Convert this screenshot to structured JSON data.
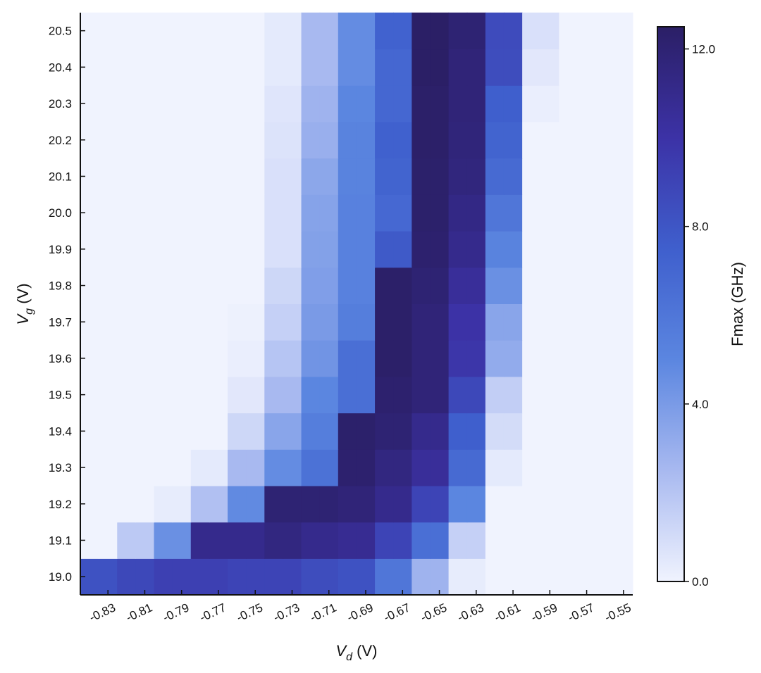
{
  "chart_data": {
    "type": "heatmap",
    "xlabel": {
      "main": "V",
      "sub": "d",
      "unit": " (V)"
    },
    "ylabel": {
      "main": "V",
      "sub": "g",
      "unit": " (V)"
    },
    "x_tick_labels": [
      "-0.83",
      "-0.81",
      "-0.79",
      "-0.77",
      "-0.75",
      "-0.73",
      "-0.71",
      "-0.69",
      "-0.67",
      "-0.65",
      "-0.63",
      "-0.61",
      "-0.59",
      "-0.57",
      "-0.55"
    ],
    "y_tick_labels": [
      "19.0",
      "19.1",
      "19.2",
      "19.3",
      "19.4",
      "19.5",
      "19.6",
      "19.7",
      "19.8",
      "19.9",
      "20.0",
      "20.1",
      "20.2",
      "20.3",
      "20.4",
      "20.5"
    ],
    "x_values": [
      -0.84,
      -0.83,
      -0.82,
      -0.81,
      -0.8,
      -0.79,
      -0.78,
      -0.77,
      -0.76,
      -0.75,
      -0.74,
      -0.73,
      -0.72,
      -0.71,
      -0.7,
      -0.69,
      -0.68,
      -0.67,
      -0.66,
      -0.65,
      -0.64,
      -0.63,
      -0.62,
      -0.61,
      -0.6,
      -0.59,
      -0.58,
      -0.57,
      -0.56,
      -0.55
    ],
    "colorbar": {
      "label": "Fmax (GHz)",
      "min": 0.0,
      "max": 12.5,
      "tick_values": [
        0,
        4,
        8,
        12
      ],
      "tick_labels": [
        "0.0",
        "4.0",
        "8.0",
        "12.0"
      ],
      "colors": [
        "#f0f3fe",
        "#a8b9f0",
        "#5b86e0",
        "#3f5fcd",
        "#3c32a6",
        "#2b1f66"
      ]
    },
    "rows": [
      {
        "y": "19.0",
        "values": [
          8.2,
          8.2,
          8.8,
          8.8,
          9.2,
          9.2,
          9.2,
          9.2,
          9.0,
          9.0,
          9.0,
          9.0,
          8.5,
          8.5,
          8.2,
          8.2,
          6.0,
          6.0,
          2.8,
          2.8,
          0.3,
          0.3,
          0.0,
          0.0,
          0.0,
          0.0,
          0.0,
          0.0,
          0.0,
          0.0
        ]
      },
      {
        "y": "19.1",
        "values": [
          0.0,
          0.0,
          1.8,
          1.8,
          4.5,
          4.5,
          11.0,
          11.0,
          11.0,
          11.0,
          11.5,
          11.5,
          11.0,
          11.0,
          10.8,
          10.8,
          9.0,
          9.0,
          6.5,
          6.5,
          1.5,
          1.5,
          0.0,
          0.0,
          0.0,
          0.0,
          0.0,
          0.0,
          0.0,
          0.0
        ]
      },
      {
        "y": "19.2",
        "values": [
          0.0,
          0.0,
          0.0,
          0.0,
          0.3,
          0.3,
          2.2,
          2.2,
          4.8,
          4.8,
          12.0,
          12.0,
          12.0,
          12.0,
          11.8,
          11.8,
          11.0,
          11.0,
          9.0,
          9.0,
          5.0,
          5.0,
          0.0,
          0.0,
          0.0,
          0.0,
          0.0,
          0.0,
          0.0,
          0.0
        ]
      },
      {
        "y": "19.3",
        "values": [
          0.0,
          0.0,
          0.0,
          0.0,
          0.0,
          0.0,
          0.4,
          0.4,
          2.5,
          2.5,
          4.7,
          4.7,
          6.3,
          6.3,
          12.2,
          12.2,
          11.5,
          11.5,
          10.5,
          10.5,
          6.8,
          6.8,
          0.4,
          0.4,
          0.0,
          0.0,
          0.0,
          0.0,
          0.0,
          0.0
        ]
      },
      {
        "y": "19.4",
        "values": [
          0.0,
          0.0,
          0.0,
          0.0,
          0.0,
          0.0,
          0.0,
          0.0,
          1.2,
          1.2,
          3.5,
          3.5,
          5.5,
          5.5,
          12.3,
          12.3,
          12.0,
          12.0,
          11.0,
          11.0,
          7.5,
          7.5,
          1.0,
          1.0,
          0.0,
          0.0,
          0.0,
          0.0,
          0.0,
          0.0
        ]
      },
      {
        "y": "19.5",
        "values": [
          0.0,
          0.0,
          0.0,
          0.0,
          0.0,
          0.0,
          0.0,
          0.0,
          0.5,
          0.5,
          2.5,
          2.5,
          5.0,
          5.0,
          6.5,
          6.5,
          12.2,
          12.2,
          11.8,
          11.8,
          8.8,
          8.8,
          1.6,
          1.6,
          0.0,
          0.0,
          0.0,
          0.0,
          0.0,
          0.0
        ]
      },
      {
        "y": "19.6",
        "values": [
          0.0,
          0.0,
          0.0,
          0.0,
          0.0,
          0.0,
          0.0,
          0.0,
          0.2,
          0.2,
          2.0,
          2.0,
          4.3,
          4.3,
          6.5,
          6.5,
          12.4,
          12.4,
          11.8,
          11.8,
          9.8,
          9.8,
          3.2,
          3.2,
          0.0,
          0.0,
          0.0,
          0.0,
          0.0,
          0.0
        ]
      },
      {
        "y": "19.7",
        "values": [
          0.0,
          0.0,
          0.0,
          0.0,
          0.0,
          0.0,
          0.0,
          0.0,
          0.1,
          0.1,
          1.5,
          1.5,
          4.0,
          4.0,
          5.5,
          5.5,
          12.4,
          12.4,
          11.8,
          11.8,
          10.0,
          10.0,
          3.5,
          3.5,
          0.0,
          0.0,
          0.0,
          0.0,
          0.0,
          0.0
        ]
      },
      {
        "y": "19.8",
        "values": [
          0.0,
          0.0,
          0.0,
          0.0,
          0.0,
          0.0,
          0.0,
          0.0,
          0.0,
          0.0,
          1.2,
          1.2,
          3.8,
          3.8,
          5.3,
          5.3,
          12.4,
          12.4,
          12.0,
          12.0,
          10.5,
          10.5,
          4.5,
          4.5,
          0.0,
          0.0,
          0.0,
          0.0,
          0.0,
          0.0
        ]
      },
      {
        "y": "19.9",
        "values": [
          0.0,
          0.0,
          0.0,
          0.0,
          0.0,
          0.0,
          0.0,
          0.0,
          0.0,
          0.0,
          0.8,
          0.8,
          3.7,
          3.7,
          5.3,
          5.3,
          7.8,
          7.8,
          12.2,
          12.2,
          11.0,
          11.0,
          5.2,
          5.2,
          0.0,
          0.0,
          0.0,
          0.0,
          0.0,
          0.0
        ]
      },
      {
        "y": "20.0",
        "values": [
          0.0,
          0.0,
          0.0,
          0.0,
          0.0,
          0.0,
          0.0,
          0.0,
          0.0,
          0.0,
          0.8,
          0.8,
          3.6,
          3.6,
          5.3,
          5.3,
          6.9,
          6.9,
          12.3,
          12.3,
          11.3,
          11.3,
          6.0,
          6.0,
          0.0,
          0.0,
          0.0,
          0.0,
          0.0,
          0.0
        ]
      },
      {
        "y": "20.1",
        "values": [
          0.0,
          0.0,
          0.0,
          0.0,
          0.0,
          0.0,
          0.0,
          0.0,
          0.0,
          0.0,
          0.8,
          0.8,
          3.4,
          3.4,
          5.2,
          5.2,
          7.2,
          7.2,
          12.3,
          12.3,
          11.6,
          11.6,
          6.8,
          6.8,
          0.0,
          0.0,
          0.0,
          0.0,
          0.0,
          0.0
        ]
      },
      {
        "y": "20.2",
        "values": [
          0.0,
          0.0,
          0.0,
          0.0,
          0.0,
          0.0,
          0.0,
          0.0,
          0.0,
          0.0,
          0.7,
          0.7,
          3.0,
          3.0,
          5.2,
          5.2,
          7.4,
          7.4,
          12.4,
          12.4,
          11.7,
          11.7,
          7.2,
          7.2,
          0.0,
          0.0,
          0.0,
          0.0,
          0.0,
          0.0
        ]
      },
      {
        "y": "20.3",
        "values": [
          0.0,
          0.0,
          0.0,
          0.0,
          0.0,
          0.0,
          0.0,
          0.0,
          0.0,
          0.0,
          0.6,
          0.6,
          2.8,
          2.8,
          5.0,
          5.0,
          7.0,
          7.0,
          12.4,
          12.4,
          11.8,
          11.8,
          7.5,
          7.5,
          0.2,
          0.2,
          0.0,
          0.0,
          0.0,
          0.0
        ]
      },
      {
        "y": "20.4",
        "values": [
          0.0,
          0.0,
          0.0,
          0.0,
          0.0,
          0.0,
          0.0,
          0.0,
          0.0,
          0.0,
          0.4,
          0.4,
          2.5,
          2.5,
          4.7,
          4.7,
          7.0,
          7.0,
          12.5,
          12.5,
          11.8,
          11.8,
          8.5,
          8.5,
          0.5,
          0.5,
          0.0,
          0.0,
          0.0,
          0.0
        ]
      },
      {
        "y": "20.5",
        "values": [
          0.0,
          0.0,
          0.0,
          0.0,
          0.0,
          0.0,
          0.0,
          0.0,
          0.0,
          0.0,
          0.4,
          0.4,
          2.5,
          2.5,
          4.7,
          4.7,
          7.3,
          7.3,
          12.5,
          12.5,
          12.0,
          12.0,
          8.6,
          8.6,
          0.8,
          0.8,
          0.0,
          0.0,
          0.0,
          0.0
        ]
      }
    ]
  }
}
